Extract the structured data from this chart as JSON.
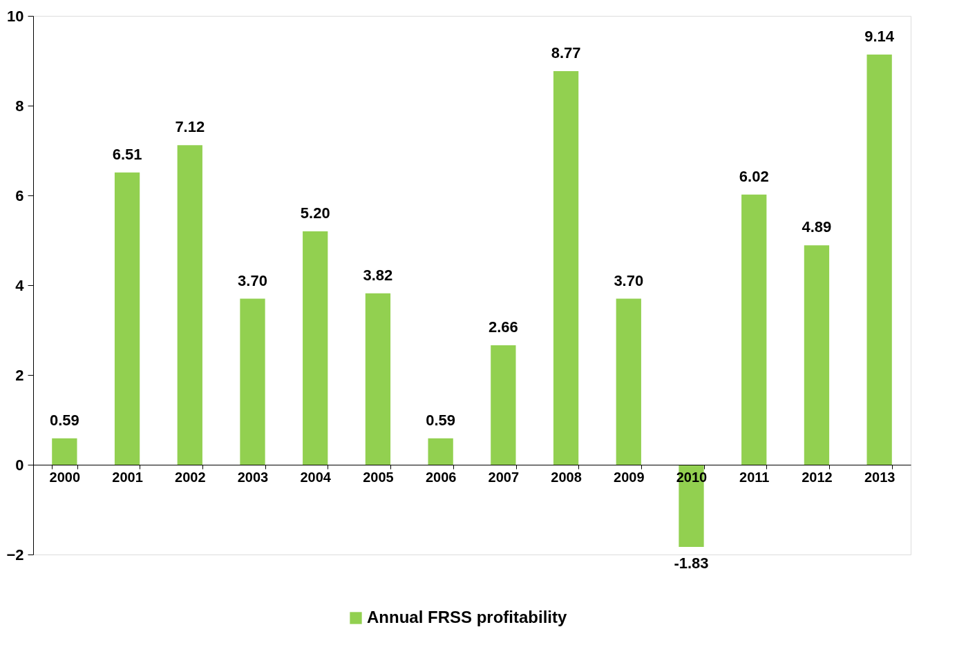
{
  "chart_data": {
    "type": "bar",
    "categories": [
      "2000",
      "2001",
      "2002",
      "2003",
      "2004",
      "2005",
      "2006",
      "2007",
      "2008",
      "2009",
      "2010",
      "2011",
      "2012",
      "2013"
    ],
    "series": [
      {
        "name": "Annual FRSS profitability",
        "color": "#92d050",
        "values": [
          0.59,
          6.51,
          7.12,
          3.7,
          5.2,
          3.82,
          0.59,
          2.66,
          8.77,
          3.7,
          -1.83,
          6.02,
          4.89,
          9.14
        ],
        "value_labels": [
          "0.59",
          "6.51",
          "7.12",
          "3.70",
          "5.20",
          "3.82",
          "0.59",
          "2.66",
          "8.77",
          "3.70",
          "-1.83",
          "6.02",
          "4.89",
          "9.14"
        ]
      }
    ],
    "ylim": [
      -2,
      10
    ],
    "yticks": [
      -2,
      0,
      2,
      4,
      6,
      8,
      10
    ],
    "grid": false,
    "legend": "bottom"
  }
}
